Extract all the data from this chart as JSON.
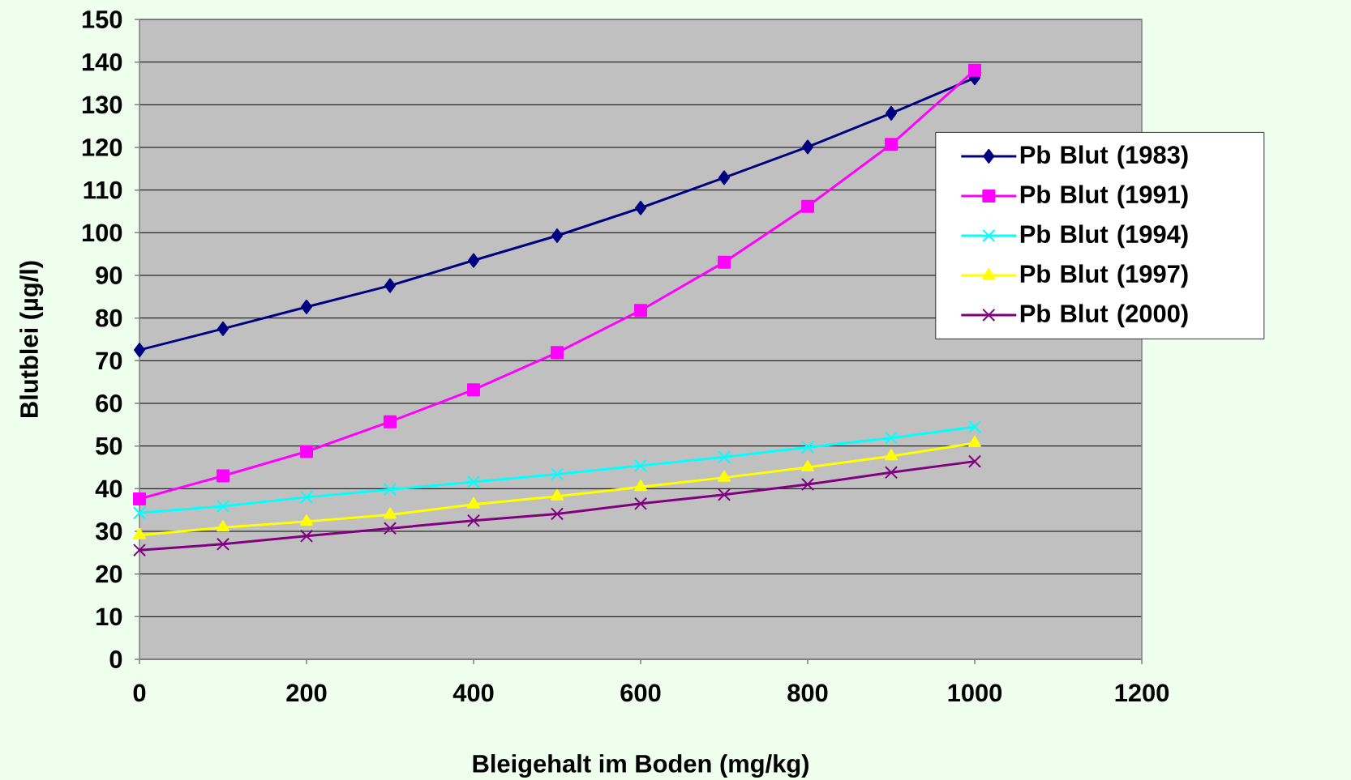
{
  "chart_data": {
    "type": "line",
    "xlabel": "Bleigehalt im Boden (mg/kg)",
    "ylabel": "Blutblei (µg/l)",
    "x": [
      0,
      100,
      200,
      300,
      400,
      500,
      600,
      700,
      800,
      900,
      1000
    ],
    "series": [
      {
        "name": "Pb Blut (1983)",
        "color": "#000080",
        "marker": "diamond",
        "values": [
          72.5,
          77.5,
          82.6,
          87.6,
          93.5,
          99.3,
          105.8,
          112.9,
          120.1,
          128.0,
          136.3
        ]
      },
      {
        "name": "Pb Blut (1991)",
        "color": "#ff00ff",
        "marker": "square",
        "values": [
          37.6,
          43.0,
          48.7,
          55.7,
          63.2,
          71.9,
          81.8,
          93.1,
          106.2,
          120.7,
          138.1
        ]
      },
      {
        "name": "Pb Blut (1994)",
        "color": "#00ffff",
        "marker": "cross",
        "values": [
          34.3,
          35.9,
          38.0,
          39.8,
          41.6,
          43.4,
          45.4,
          47.4,
          49.7,
          51.9,
          54.5
        ]
      },
      {
        "name": "Pb Blut (1997)",
        "color": "#ffff00",
        "marker": "triangle",
        "values": [
          29.1,
          30.9,
          32.3,
          33.9,
          36.3,
          38.2,
          40.4,
          42.6,
          45.0,
          47.6,
          50.7
        ]
      },
      {
        "name": "Pb Blut (2000)",
        "color": "#800080",
        "marker": "cross",
        "values": [
          25.6,
          27.0,
          28.9,
          30.7,
          32.5,
          34.1,
          36.5,
          38.6,
          41.0,
          43.8,
          46.4
        ]
      }
    ],
    "xlim": [
      0,
      1200
    ],
    "ylim": [
      0,
      150
    ],
    "xticks": [
      0,
      200,
      400,
      600,
      800,
      1000,
      1200
    ],
    "yticks": [
      0,
      10,
      20,
      30,
      40,
      50,
      60,
      70,
      80,
      90,
      100,
      110,
      120,
      130,
      140,
      150
    ],
    "grid": "y",
    "legend": "right",
    "line_style": "solid"
  }
}
